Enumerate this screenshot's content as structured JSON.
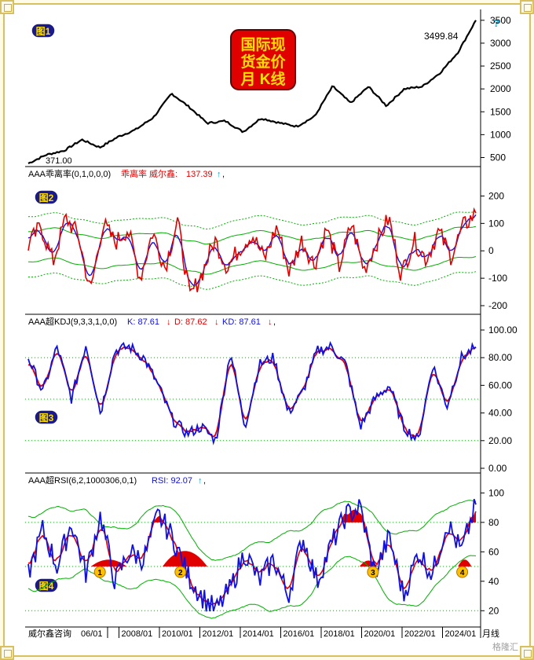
{
  "panel1": {
    "badge": "图1",
    "logo_lines": [
      "国际现",
      "货金价",
      "月 K线"
    ],
    "last_label": "3499.84",
    "min_label": "371.00",
    "help_mark": "?",
    "yticks": [
      500,
      1000,
      1500,
      2000,
      2500,
      3000,
      3500
    ]
  },
  "panel2": {
    "badge": "图2",
    "header": "AAA乖离率(0,1,0,0,0)",
    "series_text": "乖离率 威尔鑫:",
    "value_text": "137.39",
    "arrow": "↑",
    "trail": ",",
    "yticks": [
      200,
      100,
      0,
      -100,
      -200
    ]
  },
  "panel3": {
    "badge": "图3",
    "header": "AAA超KDJ(9,3,3,1,0,0)",
    "k_text": "K: 87.61",
    "d_text": "D: 87.62",
    "kd_text": "KD: 87.61",
    "arrow": "↓",
    "trail": ",",
    "yticks": [
      "100.00",
      "80.00",
      "60.00",
      "40.00",
      "20.00",
      "0.00"
    ]
  },
  "panel4": {
    "badge": "图4",
    "header": "AAA超RSI(6,2,1000306,0,1)",
    "rsi_text": "RSI: 92.07",
    "arrow": "↑",
    "trail": ",",
    "yticks": [
      100,
      80,
      60,
      40,
      20
    ],
    "markers": [
      "1",
      "2",
      "3",
      "4"
    ]
  },
  "xaxis": {
    "left_label": "威尔鑫咨询",
    "labels": [
      "06/01",
      "2008/01",
      "2010/01",
      "2012/01",
      "2014/01",
      "2016/01",
      "2018/01",
      "2020/01",
      "2022/01",
      "2024/01"
    ],
    "right_label": "月线"
  },
  "watermark": "格隆汇",
  "colors": {
    "red": "#e00000",
    "blue": "#1010e0",
    "green": "#00b000",
    "badge_blue": "#1a1a8a",
    "badge_text": "#ffe000"
  },
  "chart_data": [
    {
      "type": "line",
      "name": "monthly-candles",
      "x": [
        "2005/01",
        "2006/01",
        "2007/01",
        "2008/01",
        "2008/10",
        "2009/06",
        "2010/01",
        "2011/01",
        "2011/09",
        "2012/06",
        "2013/06",
        "2014/06",
        "2015/12",
        "2016/07",
        "2017/06",
        "2018/08",
        "2019/06",
        "2020/08",
        "2021/03",
        "2022/03",
        "2022/10",
        "2023/05",
        "2024/01",
        "2024/06",
        "2025/01",
        "2025/04"
      ],
      "values": [
        371,
        560,
        650,
        890,
        720,
        950,
        1110,
        1380,
        1900,
        1600,
        1250,
        1300,
        1060,
        1360,
        1260,
        1180,
        1400,
        2060,
        1690,
        2050,
        1630,
        2000,
        2050,
        2350,
        2800,
        3499.84
      ],
      "ylim": [
        371,
        3600
      ],
      "yticks": [
        500,
        1000,
        1500,
        2000,
        2500,
        3000,
        3500
      ]
    },
    {
      "type": "line",
      "name": "bias",
      "series": [
        {
          "name": "乖离率 威尔鑫",
          "values": [
            20,
            90,
            -40,
            120,
            60,
            -150,
            100,
            30,
            80,
            -100,
            70,
            -60,
            110,
            -170,
            -80,
            40,
            -60,
            10,
            60,
            -30,
            90,
            -80,
            40,
            -50,
            80,
            -60,
            100,
            -70,
            30,
            120,
            -90,
            40,
            -30,
            70,
            -20,
            90,
            137.39
          ]
        }
      ],
      "ylim": [
        -220,
        250
      ],
      "yticks": [
        200,
        100,
        0,
        -100,
        -200
      ]
    },
    {
      "type": "line",
      "name": "kdj",
      "series": [
        {
          "name": "K",
          "values": [
            80,
            55,
            88,
            50,
            90,
            40,
            85,
            88,
            80,
            60,
            35,
            25,
            30,
            20,
            85,
            30,
            75,
            80,
            40,
            55,
            85,
            88,
            75,
            30,
            50,
            60,
            30,
            20,
            75,
            45,
            80,
            87.61
          ]
        },
        {
          "name": "D",
          "values": [
            75,
            60,
            80,
            58,
            82,
            48,
            80,
            84,
            82,
            65,
            40,
            30,
            28,
            25,
            75,
            38,
            70,
            76,
            45,
            50,
            80,
            86,
            78,
            38,
            48,
            58,
            36,
            25,
            70,
            50,
            78,
            87.62
          ]
        },
        {
          "name": "KD",
          "values": [
            87.61
          ]
        }
      ],
      "ylim": [
        0,
        100
      ],
      "yticks": [
        100,
        80,
        60,
        40,
        20,
        0
      ]
    },
    {
      "type": "line",
      "name": "rsi",
      "series": [
        {
          "name": "RSI",
          "values": [
            45,
            75,
            50,
            80,
            45,
            85,
            40,
            60,
            55,
            85,
            70,
            45,
            30,
            20,
            35,
            60,
            40,
            55,
            30,
            70,
            40,
            65,
            85,
            90,
            45,
            70,
            30,
            60,
            45,
            80,
            60,
            92.07
          ]
        }
      ],
      "ylim": [
        10,
        105
      ],
      "yticks": [
        100,
        80,
        60,
        40,
        20
      ]
    }
  ]
}
